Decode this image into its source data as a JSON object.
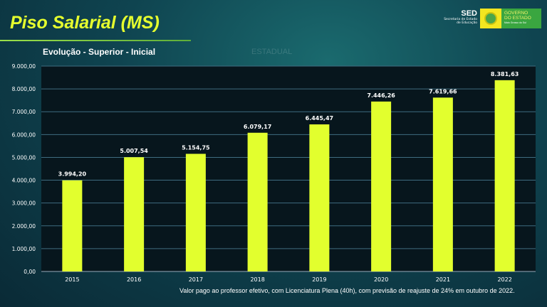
{
  "header": {
    "title": "Piso Salarial (MS)",
    "faint_label": "ESTADUAL",
    "logo_sed": {
      "name": "SED",
      "sub1": "Secretaria de Estado",
      "sub2": "de Educação"
    },
    "logo_gov": {
      "line1": "GOVERNO",
      "line2": "DO ESTADO",
      "line3": "Mato Grosso do Sul"
    }
  },
  "footer": "Valor pago ao professor efetivo, com Licenciatura Plena (40h), com previsão de reajuste de 24% em outubro de 2022.",
  "colors": {
    "bar": "#e2ff2e",
    "title": "#e6ff2e"
  },
  "chart_data": {
    "type": "bar",
    "title": "Evolução - Superior - Inicial",
    "categories": [
      "2015",
      "2016",
      "2017",
      "2018",
      "2019",
      "2020",
      "2021",
      "2022"
    ],
    "values": [
      3994.2,
      5007.54,
      5154.75,
      6079.17,
      6445.47,
      7446.26,
      7619.66,
      8381.63
    ],
    "data_labels": [
      "3.994,20",
      "5.007,54",
      "5.154,75",
      "6.079,17",
      "6.445,47",
      "7.446,26",
      "7.619,66",
      "8.381,63"
    ],
    "ylim": [
      0,
      9000
    ],
    "yticks": [
      "0,00",
      "1.000,00",
      "2.000,00",
      "3.000,00",
      "4.000,00",
      "5.000,00",
      "6.000,00",
      "7.000,00",
      "8.000,00",
      "9.000,00"
    ],
    "grid": true,
    "legend": "none"
  }
}
